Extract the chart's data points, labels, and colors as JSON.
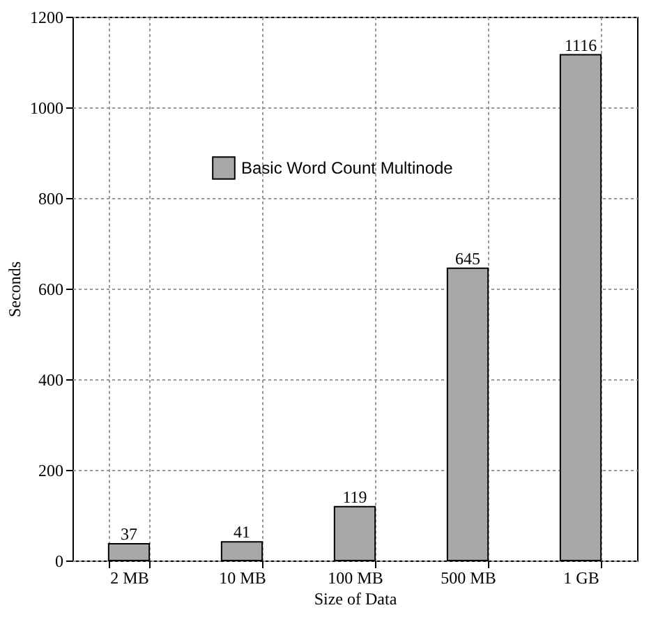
{
  "chart_data": {
    "type": "bar",
    "xlabel": "Size of Data",
    "ylabel": "Seconds",
    "categories": [
      "2 MB",
      "10 MB",
      "100 MB",
      "500 MB",
      "1 GB"
    ],
    "series": [
      {
        "name": "Basic Word Count Multinode",
        "color": "#a8a8a8",
        "values": [
          37,
          41,
          119,
          645,
          1116
        ]
      }
    ],
    "ylim": [
      0,
      1200
    ],
    "yticks": [
      0,
      200,
      400,
      600,
      800,
      1000,
      1200
    ],
    "grid": true,
    "legend": "top left",
    "data_labels": true
  }
}
